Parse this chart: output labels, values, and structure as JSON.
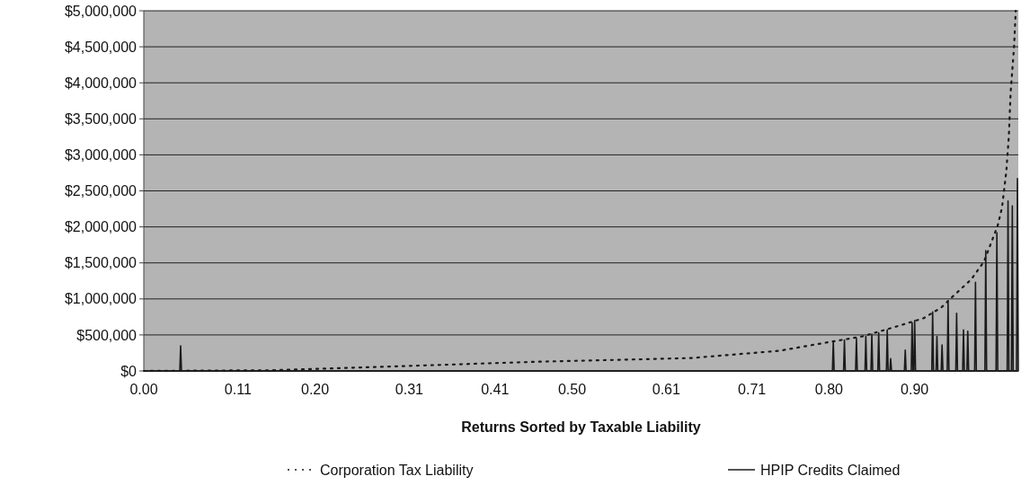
{
  "chart_data": {
    "type": "line",
    "xlabel": "Returns Sorted by Taxable Liability",
    "xlim": [
      0,
      1.021
    ],
    "xticks": [
      {
        "value": 0,
        "label": "0.00"
      },
      {
        "value": 0.11,
        "label": "0.11"
      },
      {
        "value": 0.2,
        "label": "0.20"
      },
      {
        "value": 0.31,
        "label": "0.31"
      },
      {
        "value": 0.41,
        "label": "0.41"
      },
      {
        "value": 0.5,
        "label": "0.50"
      },
      {
        "value": 0.61,
        "label": "0.61"
      },
      {
        "value": 0.71,
        "label": "0.71"
      },
      {
        "value": 0.8,
        "label": "0.80"
      },
      {
        "value": 0.9,
        "label": "0.90"
      }
    ],
    "ylim": [
      0,
      5000000
    ],
    "yticks": [
      {
        "value": 0,
        "label": "$0"
      },
      {
        "value": 500000,
        "label": "$500,000"
      },
      {
        "value": 1000000,
        "label": "$1,000,000"
      },
      {
        "value": 1500000,
        "label": "$1,500,000"
      },
      {
        "value": 2000000,
        "label": "$2,000,000"
      },
      {
        "value": 2500000,
        "label": "$2,500,000"
      },
      {
        "value": 3000000,
        "label": "$3,000,000"
      },
      {
        "value": 3500000,
        "label": "$3,500,000"
      },
      {
        "value": 4000000,
        "label": "$4,000,000"
      },
      {
        "value": 4500000,
        "label": "$4,500,000"
      },
      {
        "value": 5000000,
        "label": "$5,000,000"
      }
    ],
    "grid": "y",
    "legend": "bottom",
    "series": [
      {
        "name": "Corporation Tax Liability",
        "color": "#1a1a1a",
        "line_style": "dotted",
        "x": [
          0,
          0.152,
          0.309,
          0.466,
          0.574,
          0.64,
          0.742,
          0.795,
          0.839,
          0.874,
          0.91,
          0.931,
          0.945,
          0.966,
          0.981,
          0.997,
          1.002,
          1.007,
          1.01,
          1.012,
          1.016,
          1.018
        ],
        "values": [
          0,
          10000,
          70000,
          130000,
          160000,
          180000,
          280000,
          390000,
          480000,
          600000,
          730000,
          880000,
          1040000,
          1270000,
          1520000,
          2020000,
          2270000,
          2770000,
          3270000,
          3860000,
          4490000,
          5000000
        ]
      },
      {
        "name": "HPIP Credits Claimed",
        "color": "#1a1a1a",
        "line_style": "solid",
        "x": [
          0,
          0.042,
          0.043,
          0.044,
          0.804,
          0.805,
          0.806,
          0.817,
          0.818,
          0.819,
          0.831,
          0.832,
          0.833,
          0.842,
          0.843,
          0.844,
          0.849,
          0.85,
          0.851,
          0.857,
          0.858,
          0.859,
          0.867,
          0.868,
          0.869,
          0.871,
          0.872,
          0.873,
          0.888,
          0.889,
          0.89,
          0.896,
          0.897,
          0.898,
          0.899,
          0.9,
          0.901,
          0.92,
          0.921,
          0.922,
          0.925,
          0.926,
          0.927,
          0.931,
          0.932,
          0.933,
          0.938,
          0.939,
          0.94,
          0.948,
          0.949,
          0.95,
          0.956,
          0.957,
          0.958,
          0.961,
          0.962,
          0.963,
          0.97,
          0.971,
          0.972,
          0.982,
          0.983,
          0.984,
          0.995,
          0.996,
          0.997,
          1.008,
          1.009,
          1.01,
          1.013,
          1.014,
          1.015,
          1.019,
          1.02,
          1.021
        ],
        "values": [
          0,
          0,
          350000,
          0,
          0,
          410000,
          0,
          0,
          430000,
          0,
          0,
          450000,
          0,
          0,
          480000,
          0,
          0,
          510000,
          0,
          0,
          530000,
          0,
          0,
          570000,
          0,
          0,
          170000,
          0,
          0,
          290000,
          0,
          0,
          670000,
          0,
          0,
          700000,
          0,
          0,
          820000,
          0,
          0,
          480000,
          0,
          0,
          360000,
          0,
          0,
          960000,
          0,
          0,
          800000,
          0,
          0,
          570000,
          0,
          0,
          550000,
          0,
          0,
          1230000,
          0,
          0,
          1670000,
          0,
          0,
          1920000,
          0,
          0,
          2360000,
          0,
          0,
          2290000,
          0,
          0,
          2670000,
          0
        ]
      }
    ]
  }
}
